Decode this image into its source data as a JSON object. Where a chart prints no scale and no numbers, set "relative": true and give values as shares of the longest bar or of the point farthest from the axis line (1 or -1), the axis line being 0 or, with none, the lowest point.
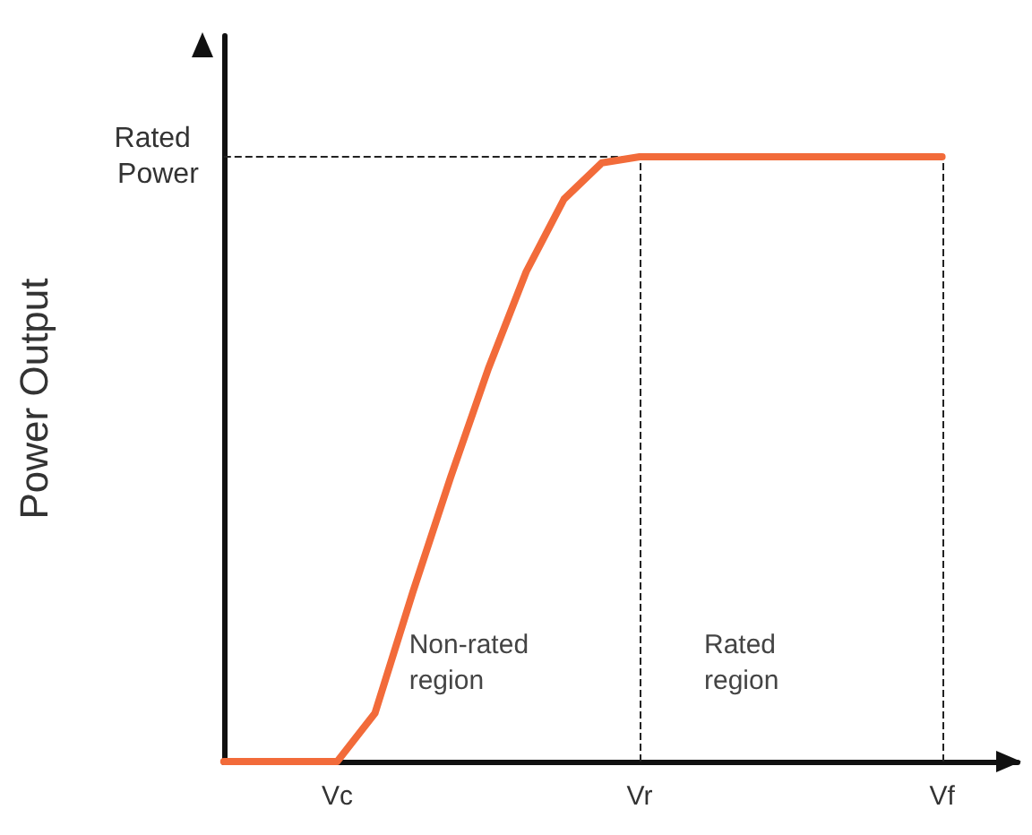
{
  "chart_data": {
    "type": "line",
    "relative": true,
    "ylabel": "Power Output",
    "categories": [
      null,
      null,
      null,
      "Vc",
      null,
      null,
      null,
      null,
      null,
      null,
      null,
      "Vr",
      null,
      null,
      null,
      null,
      null,
      null,
      null,
      "Vf"
    ],
    "series": [
      {
        "color": "#f26b3a",
        "values": [
          0,
          0,
          0,
          0,
          0.08,
          0.28,
          0.47,
          0.65,
          0.81,
          0.93,
          0.99,
          1,
          1,
          1,
          1,
          1,
          1,
          1,
          1,
          1
        ]
      }
    ],
    "ref_lines": [
      {
        "axis": "y",
        "value": 1,
        "label": "Rated Power",
        "line_style": "dashed"
      },
      {
        "axis": "x",
        "value": "Vr",
        "line_style": "dashed"
      },
      {
        "axis": "x",
        "value": "Vf",
        "line_style": "dashed"
      }
    ],
    "annotations": [
      "Non-rated region",
      "Rated region"
    ],
    "grid": false,
    "marker": "none",
    "line_style": "solid"
  }
}
